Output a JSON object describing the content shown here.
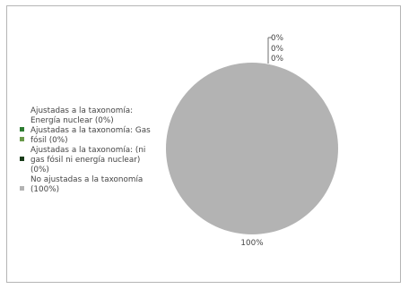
{
  "chart_data": {
    "type": "pie",
    "title": "",
    "series": [
      {
        "name": "Ajustadas a la taxonomía: Energía nuclear (0%)",
        "value": 0,
        "color": "#2e7d32",
        "label": "0%"
      },
      {
        "name": "Ajustadas a la taxonomía: Gas fósil (0%)",
        "value": 0,
        "color": "#6a9a4a",
        "label": "0%"
      },
      {
        "name": "Ajustadas a la taxonomía: (ni gas fósil ni energía nuclear) (0%)",
        "value": 0,
        "color": "#1a3d1a",
        "label": "0%"
      },
      {
        "name": "No ajustadas a la taxonomía (100%)",
        "value": 100,
        "color": "#b3b3b3",
        "label": "100%"
      }
    ],
    "legend_position": "left"
  }
}
